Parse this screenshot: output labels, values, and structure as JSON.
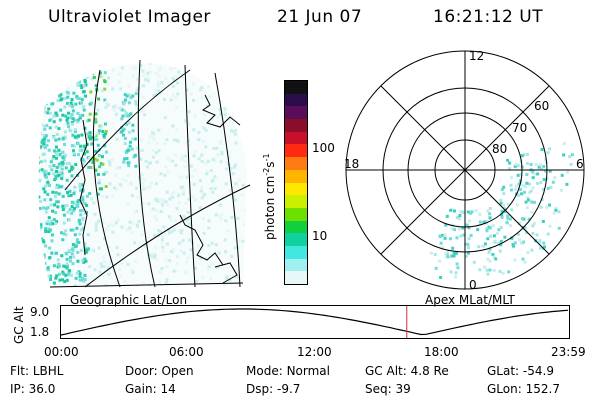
{
  "header": {
    "title": "Ultraviolet Imager",
    "date": "21 Jun 07",
    "time": "16:21:12 UT"
  },
  "colorbar": {
    "label": "photon cm",
    "label_sup1": "-2",
    "label_mid": "s",
    "label_sup2": "-1",
    "ticks": [
      "100",
      "10"
    ],
    "colors": [
      "#111111",
      "#2a0d4a",
      "#5a0d5a",
      "#8a0d2a",
      "#c8102a",
      "#ff2a10",
      "#ff7a10",
      "#ffb400",
      "#ffe800",
      "#c8f000",
      "#6ee000",
      "#10d040",
      "#10d0a0",
      "#40e8e0",
      "#a0f0f0",
      "#e8f8f8"
    ]
  },
  "polar": {
    "mlt_labels": {
      "top": "12",
      "left": "18",
      "right": "6",
      "bottom": "0"
    },
    "lat_labels": [
      "60",
      "70",
      "80"
    ]
  },
  "map_labels": {
    "left": "Geographic Lat/Lon",
    "right": "Apex MLat/MLT"
  },
  "altitude_plot": {
    "ylabel": "GC Alt",
    "yticks": [
      "9.0",
      "1.8"
    ],
    "xticks": [
      "00:00",
      "06:00",
      "12:00",
      "18:00",
      "23:59"
    ],
    "current_time_fraction": 0.682,
    "marker_color": "#cc3333"
  },
  "footer": {
    "row1": [
      {
        "key": "Flt:",
        "value": "LBHL"
      },
      {
        "key": "Door:",
        "value": "Open"
      },
      {
        "key": "Mode:",
        "value": "Normal"
      },
      {
        "key": "GC Alt:",
        "value": "4.8 Re"
      },
      {
        "key": "GLat:",
        "value": "-54.9"
      }
    ],
    "row2": [
      {
        "key": "IP:",
        "value": "36.0"
      },
      {
        "key": "Gain:",
        "value": "14"
      },
      {
        "key": "Dsp:",
        "value": "-9.7"
      },
      {
        "key": "Seq:",
        "value": "39"
      },
      {
        "key": "GLon:",
        "value": "152.7"
      }
    ]
  }
}
